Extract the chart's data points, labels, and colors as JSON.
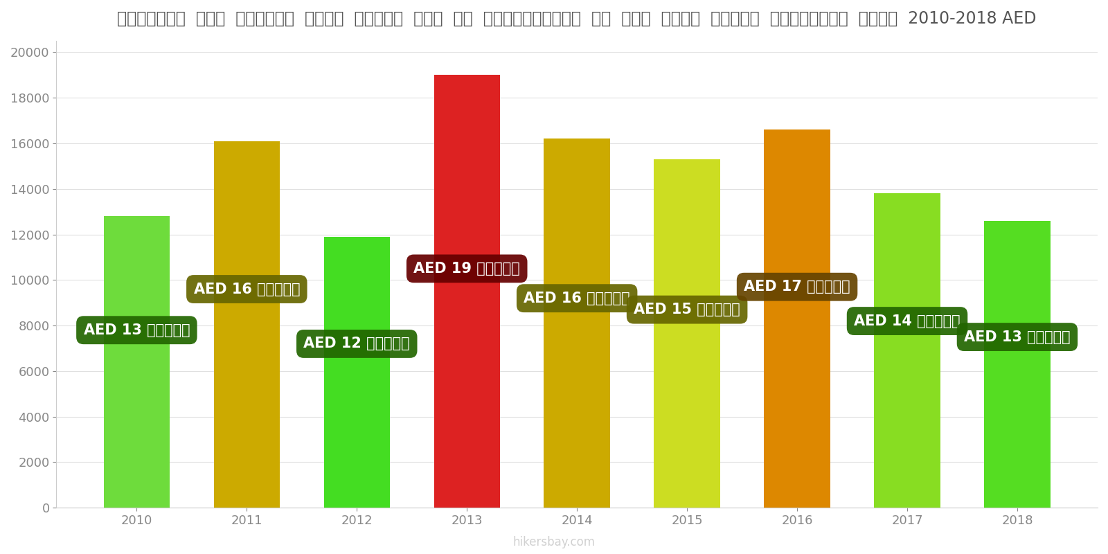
{
  "years": [
    2010,
    2011,
    2012,
    2013,
    2014,
    2015,
    2016,
    2017,
    2018
  ],
  "values": [
    12800,
    16100,
    11900,
    19000,
    16200,
    15300,
    16600,
    13800,
    12600
  ],
  "bar_colors": [
    "#6edc3c",
    "#ccaa00",
    "#44dd22",
    "#dd2222",
    "#ccaa00",
    "#ccdd22",
    "#dd8800",
    "#88dd22",
    "#55dd22"
  ],
  "label_bg_colors": [
    "#226600",
    "#666600",
    "#226600",
    "#660000",
    "#666600",
    "#666600",
    "#664400",
    "#226600",
    "#226600"
  ],
  "labels": [
    "AED 13 हज़ार",
    "AED 16 हज़ार",
    "AED 12 हज़ार",
    "AED 19 हज़ार",
    "AED 16 हज़ार",
    "AED 15 हज़ार",
    "AED 17 हज़ार",
    "AED 14 हज़ार",
    "AED 13 हज़ार"
  ],
  "label_y_positions": [
    7800,
    9600,
    7200,
    10500,
    9200,
    8700,
    9700,
    8200,
    7500
  ],
  "title": "संयुक्त  अरब  अमीरात  सिटी  सेंटर  में  एक  अपार्टमेंट  के  लिए  कीमत  प्रति  स्क्वायर  मीटर  2010-2018 AED",
  "ylim": [
    0,
    20500
  ],
  "yticks": [
    0,
    2000,
    4000,
    6000,
    8000,
    10000,
    12000,
    14000,
    16000,
    18000,
    20000
  ],
  "bg_color": "#ffffff",
  "label_text_color": "#ffffff",
  "label_fontsize": 15,
  "axis_fontsize": 13,
  "title_fontsize": 17,
  "watermark": "hikersbay.com"
}
